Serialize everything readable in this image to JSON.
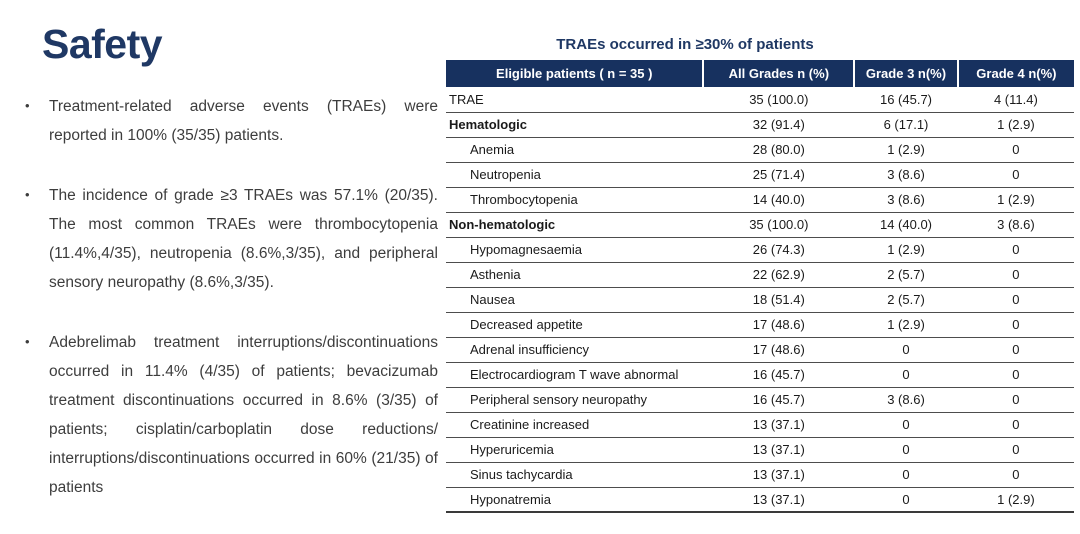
{
  "colors": {
    "navy": "#1F3864",
    "header_bg": "#17315F",
    "body_text": "#3D3D3D",
    "row_border": "#4D4D4D"
  },
  "icons": {
    "bullet": "•"
  },
  "slide": {
    "title": "Safety",
    "bullets": [
      {
        "text": "Treatment-related adverse events (TRAEs) were reported in 100% (35/35) patients."
      },
      {
        "text": "The incidence of grade ≥3 TRAEs was 57.1% (20/35). The most common TRAEs were thrombocytopenia (11.4%,4/35), neutropenia (8.6%,3/35), and peripheral sensory neuropathy (8.6%,3/35)."
      },
      {
        "text": "Adebrelimab treatment interruptions/discontinuations occurred in 11.4% (4/35) of patients; bevacizumab treatment discontinuations occurred in 8.6% (3/35) of patients; cisplatin/carboplatin dose reductions/ interruptions/discontinuations occurred in 60% (21/35) of patients"
      }
    ]
  },
  "table": {
    "title": "TRAEs occurred in ≥30% of patients",
    "columns": [
      {
        "label": "Eligible patients ( n = 35 )",
        "width": "41%"
      },
      {
        "label": "All Grades  n (%)",
        "width": "24%"
      },
      {
        "label": "Grade 3   n(%)",
        "width": "16.5%"
      },
      {
        "label": "Grade 4  n(%)",
        "width": "18.5%"
      }
    ],
    "rows": [
      {
        "label": "TRAE",
        "all_grades": "35 (100.0)",
        "grade3": "16 (45.7)",
        "grade4": "4 (11.4)",
        "style": "top"
      },
      {
        "label": "Hematologic",
        "all_grades": "32 (91.4)",
        "grade3": "6 (17.1)",
        "grade4": "1 (2.9)",
        "style": "category"
      },
      {
        "label": "Anemia",
        "all_grades": "28 (80.0)",
        "grade3": "1 (2.9)",
        "grade4": "0",
        "style": "item"
      },
      {
        "label": "Neutropenia",
        "all_grades": "25 (71.4)",
        "grade3": "3 (8.6)",
        "grade4": "0",
        "style": "item"
      },
      {
        "label": "Thrombocytopenia",
        "all_grades": "14 (40.0)",
        "grade3": "3 (8.6)",
        "grade4": "1 (2.9)",
        "style": "item"
      },
      {
        "label": "Non-hematologic",
        "all_grades": "35 (100.0)",
        "grade3": "14 (40.0)",
        "grade4": "3 (8.6)",
        "style": "category"
      },
      {
        "label": "Hypomagnesaemia",
        "all_grades": "26 (74.3)",
        "grade3": "1 (2.9)",
        "grade4": "0",
        "style": "item"
      },
      {
        "label": "Asthenia",
        "all_grades": "22 (62.9)",
        "grade3": "2 (5.7)",
        "grade4": "0",
        "style": "item"
      },
      {
        "label": "Nausea",
        "all_grades": "18 (51.4)",
        "grade3": "2 (5.7)",
        "grade4": "0",
        "style": "item"
      },
      {
        "label": "Decreased appetite",
        "all_grades": "17 (48.6)",
        "grade3": "1 (2.9)",
        "grade4": "0",
        "style": "item"
      },
      {
        "label": "Adrenal insufficiency",
        "all_grades": "17 (48.6)",
        "grade3": "0",
        "grade4": "0",
        "style": "item"
      },
      {
        "label": "Electrocardiogram T wave abnormal",
        "all_grades": "16 (45.7)",
        "grade3": "0",
        "grade4": "0",
        "style": "item"
      },
      {
        "label": "Peripheral sensory neuropathy",
        "all_grades": "16 (45.7)",
        "grade3": "3 (8.6)",
        "grade4": "0",
        "style": "item"
      },
      {
        "label": "Creatinine increased",
        "all_grades": "13 (37.1)",
        "grade3": "0",
        "grade4": "0",
        "style": "item"
      },
      {
        "label": "Hyperuricemia",
        "all_grades": "13 (37.1)",
        "grade3": "0",
        "grade4": "0",
        "style": "item"
      },
      {
        "label": "Sinus tachycardia",
        "all_grades": "13 (37.1)",
        "grade3": "0",
        "grade4": "0",
        "style": "item"
      },
      {
        "label": "Hyponatremia",
        "all_grades": "13 (37.1)",
        "grade3": "0",
        "grade4": "1 (2.9)",
        "style": "item"
      }
    ]
  }
}
